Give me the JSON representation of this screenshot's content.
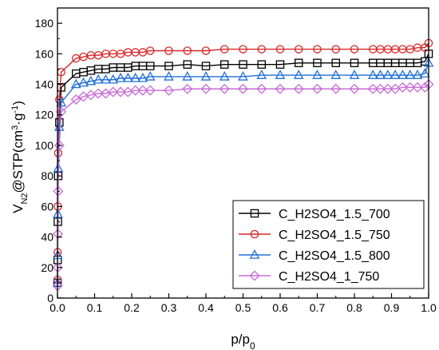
{
  "chart_data": {
    "type": "line",
    "title": "",
    "xlabel": {
      "main": "p/p",
      "sub": "0"
    },
    "ylabel": {
      "v": "V",
      "v_sub": "N2",
      "mid": "@STP(cm",
      "sup3": "3",
      "dot": "·g",
      "sup_neg1": "-1",
      "end": ")"
    },
    "xlim": [
      0,
      1.0
    ],
    "ylim": [
      0,
      190
    ],
    "xticks": [
      0.0,
      0.1,
      0.2,
      0.3,
      0.4,
      0.5,
      0.6,
      0.7,
      0.8,
      0.9,
      1.0
    ],
    "xtick_labels": [
      "0.0",
      "0.1",
      "0.2",
      "0.3",
      "0.4",
      "0.5",
      "0.6",
      "0.7",
      "0.8",
      "0.9",
      "1.0"
    ],
    "yticks": [
      0,
      20,
      40,
      60,
      80,
      100,
      120,
      140,
      160,
      180
    ],
    "ytick_labels": [
      "0",
      "20",
      "40",
      "60",
      "80",
      "100",
      "120",
      "140",
      "160",
      "180"
    ],
    "grid": false,
    "legend_position": "bottom-right",
    "series": [
      {
        "name": "C_H2SO4_1.5_700",
        "color": "#000000",
        "marker": "square",
        "x": [
          0.0002,
          0.0005,
          0.001,
          0.002,
          0.005,
          0.01,
          0.05,
          0.07,
          0.09,
          0.11,
          0.13,
          0.15,
          0.17,
          0.19,
          0.21,
          0.23,
          0.25,
          0.3,
          0.35,
          0.4,
          0.45,
          0.5,
          0.55,
          0.6,
          0.65,
          0.7,
          0.75,
          0.8,
          0.85,
          0.87,
          0.89,
          0.91,
          0.93,
          0.95,
          0.97,
          0.99,
          1.0
        ],
        "y": [
          10,
          25,
          50,
          80,
          115,
          138,
          147,
          148,
          149,
          150,
          150,
          151,
          151,
          151,
          152,
          152,
          152,
          152,
          153,
          152,
          153,
          153,
          153,
          153,
          154,
          154,
          154,
          154,
          154,
          154,
          154,
          154,
          154,
          154,
          154,
          155,
          160
        ]
      },
      {
        "name": "C_H2SO4_1.5_750",
        "color": "#d62728",
        "marker": "circle",
        "x": [
          0.0002,
          0.0005,
          0.001,
          0.002,
          0.005,
          0.01,
          0.05,
          0.07,
          0.09,
          0.11,
          0.13,
          0.15,
          0.17,
          0.19,
          0.21,
          0.23,
          0.25,
          0.3,
          0.35,
          0.4,
          0.45,
          0.5,
          0.55,
          0.6,
          0.65,
          0.7,
          0.75,
          0.8,
          0.85,
          0.87,
          0.89,
          0.91,
          0.93,
          0.95,
          0.97,
          0.99,
          1.0
        ],
        "y": [
          12,
          30,
          60,
          95,
          130,
          148,
          157,
          158,
          159,
          159,
          160,
          160,
          160,
          161,
          161,
          161,
          162,
          162,
          162,
          162,
          163,
          163,
          163,
          163,
          163,
          163,
          163,
          163,
          163,
          163,
          163,
          163,
          163,
          163,
          164,
          164,
          167
        ]
      },
      {
        "name": "C_H2SO4_1.5_800",
        "color": "#1f6fd6",
        "marker": "triangle",
        "x": [
          0.0002,
          0.0005,
          0.001,
          0.002,
          0.005,
          0.01,
          0.05,
          0.07,
          0.09,
          0.11,
          0.13,
          0.15,
          0.17,
          0.19,
          0.21,
          0.23,
          0.25,
          0.3,
          0.35,
          0.4,
          0.45,
          0.5,
          0.55,
          0.6,
          0.65,
          0.7,
          0.75,
          0.8,
          0.85,
          0.87,
          0.89,
          0.91,
          0.93,
          0.95,
          0.97,
          0.99,
          1.0
        ],
        "y": [
          10,
          28,
          55,
          85,
          112,
          128,
          140,
          141,
          142,
          143,
          143,
          143,
          144,
          144,
          144,
          144,
          145,
          145,
          145,
          145,
          145,
          145,
          146,
          146,
          146,
          146,
          146,
          146,
          146,
          146,
          146,
          146,
          146,
          146,
          146,
          147,
          154
        ]
      },
      {
        "name": "C_H2SO4_1_750",
        "color": "#c86bd6",
        "marker": "diamond",
        "x": [
          0.0002,
          0.0005,
          0.001,
          0.002,
          0.005,
          0.01,
          0.05,
          0.07,
          0.09,
          0.11,
          0.13,
          0.15,
          0.17,
          0.19,
          0.21,
          0.23,
          0.25,
          0.3,
          0.35,
          0.4,
          0.45,
          0.5,
          0.55,
          0.6,
          0.65,
          0.7,
          0.75,
          0.8,
          0.85,
          0.87,
          0.89,
          0.91,
          0.93,
          0.95,
          0.97,
          0.99,
          1.0
        ],
        "y": [
          8,
          20,
          42,
          70,
          100,
          122,
          130,
          132,
          133,
          134,
          134,
          135,
          135,
          135,
          136,
          136,
          136,
          136,
          137,
          137,
          137,
          137,
          137,
          137,
          137,
          137,
          137,
          137,
          137,
          137,
          137,
          137,
          138,
          138,
          138,
          138,
          140
        ]
      }
    ]
  }
}
